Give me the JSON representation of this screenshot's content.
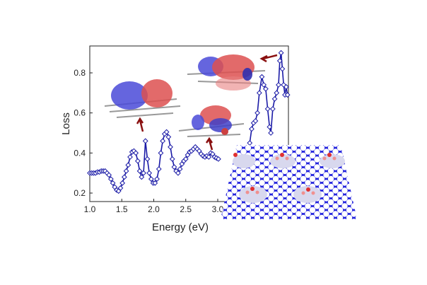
{
  "chart_data": {
    "type": "line",
    "xlabel": "Energy (eV)",
    "ylabel": "Loss",
    "xlim": [
      1.0,
      4.12
    ],
    "ylim": [
      0.158,
      0.934
    ],
    "xticks": [
      "1.0",
      "1.5",
      "2.0",
      "2.5",
      "3.0"
    ],
    "yticks": [
      "0.2",
      "0.4",
      "0.6",
      "0.8"
    ],
    "grid": false,
    "marker": "open-diamond",
    "series_color": "#1a1aa6",
    "series": [
      {
        "x": [
          1.0,
          1.03,
          1.06,
          1.09,
          1.12,
          1.15,
          1.18,
          1.21,
          1.24,
          1.27,
          1.3,
          1.33,
          1.36,
          1.39,
          1.42,
          1.45,
          1.48,
          1.51,
          1.54,
          1.57,
          1.6,
          1.63,
          1.66,
          1.69,
          1.72,
          1.75,
          1.78,
          1.81,
          1.84,
          1.87,
          1.9,
          1.93,
          1.96,
          1.99,
          2.02,
          2.05,
          2.08,
          2.11,
          2.14,
          2.17,
          2.2,
          2.23,
          2.26,
          2.29,
          2.32,
          2.35,
          2.38,
          2.41,
          2.44,
          2.47,
          2.5,
          2.53,
          2.56,
          2.59,
          2.62,
          2.65,
          2.68,
          2.71,
          2.74,
          2.77,
          2.8,
          2.83,
          2.86,
          2.89,
          2.92,
          2.95,
          2.98,
          3.01,
          3.5,
          3.53,
          3.56,
          3.59,
          3.62,
          3.65,
          3.69,
          3.72,
          3.75,
          3.78,
          3.81,
          3.83,
          3.86,
          3.89,
          3.92,
          3.95,
          3.97,
          3.99,
          4.01,
          4.03,
          4.05,
          4.07,
          4.09
        ],
        "y": [
          0.3,
          0.3,
          0.3,
          0.3,
          0.305,
          0.305,
          0.31,
          0.31,
          0.31,
          0.3,
          0.29,
          0.27,
          0.25,
          0.23,
          0.215,
          0.21,
          0.225,
          0.25,
          0.28,
          0.31,
          0.34,
          0.38,
          0.405,
          0.41,
          0.4,
          0.36,
          0.31,
          0.28,
          0.3,
          0.46,
          0.37,
          0.3,
          0.27,
          0.25,
          0.25,
          0.27,
          0.32,
          0.4,
          0.46,
          0.495,
          0.505,
          0.48,
          0.43,
          0.37,
          0.33,
          0.31,
          0.3,
          0.32,
          0.345,
          0.36,
          0.37,
          0.39,
          0.405,
          0.41,
          0.42,
          0.43,
          0.42,
          0.41,
          0.395,
          0.385,
          0.38,
          0.385,
          0.38,
          0.4,
          0.395,
          0.38,
          0.375,
          0.37,
          0.45,
          0.52,
          0.55,
          0.56,
          0.6,
          0.7,
          0.78,
          0.74,
          0.72,
          0.62,
          0.53,
          0.5,
          0.62,
          0.67,
          0.7,
          0.74,
          0.86,
          0.9,
          0.82,
          0.74,
          0.69,
          0.73,
          0.69
        ]
      }
    ]
  }
}
